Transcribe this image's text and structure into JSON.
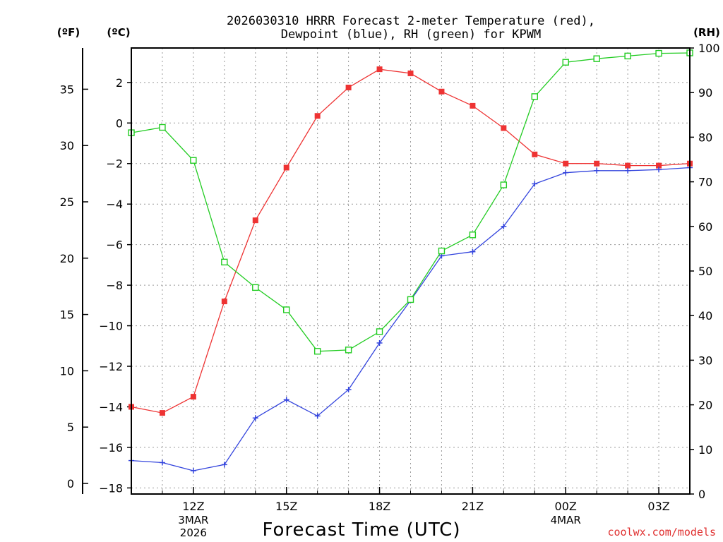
{
  "chart_data": {
    "type": "line",
    "title": "2026030310 HRRR Forecast 2-meter Temperature (red),",
    "title_line2": "Dewpoint (blue), RH (green) for KPWM",
    "xlabel": "Forecast Time (UTC)",
    "credit": "coolwx.com/models",
    "units": {
      "f": "(ºF)",
      "c": "(ºC)",
      "rh": "(RH)"
    },
    "x": [
      10,
      11,
      12,
      13,
      14,
      15,
      16,
      17,
      18,
      19,
      20,
      21,
      22,
      23,
      24,
      25,
      26,
      27,
      28
    ],
    "xlim": [
      10,
      28
    ],
    "x_ticks": [
      {
        "x": 12,
        "label": "12Z",
        "sub1": "3MAR",
        "sub2": "2026"
      },
      {
        "x": 15,
        "label": "15Z",
        "sub1": "",
        "sub2": ""
      },
      {
        "x": 18,
        "label": "18Z",
        "sub1": "",
        "sub2": ""
      },
      {
        "x": 21,
        "label": "21Z",
        "sub1": "",
        "sub2": ""
      },
      {
        "x": 24,
        "label": "00Z",
        "sub1": "4MAR",
        "sub2": ""
      },
      {
        "x": 27,
        "label": "03Z",
        "sub1": "",
        "sub2": ""
      }
    ],
    "y_c_range": [
      -18.3,
      3.7
    ],
    "y_c_ticks": [
      2,
      0,
      -2,
      -4,
      -6,
      -8,
      -10,
      -12,
      -14,
      -16,
      -18
    ],
    "y_f_ticks": [
      35,
      30,
      25,
      20,
      15,
      10,
      5,
      0
    ],
    "y_rh_range": [
      0,
      100
    ],
    "y_rh_ticks": [
      100,
      90,
      80,
      70,
      60,
      50,
      40,
      30,
      20,
      10,
      0
    ],
    "series": [
      {
        "name": "Temperature",
        "axis": "c",
        "color": "#ee3333",
        "marker": "filled-square",
        "values": [
          -14.0,
          -14.3,
          -13.5,
          -8.8,
          -4.8,
          -2.2,
          0.35,
          1.75,
          2.65,
          2.45,
          1.55,
          0.85,
          -0.25,
          -1.55,
          -2.0,
          -2.0,
          -2.1,
          -2.1,
          -2.0
        ]
      },
      {
        "name": "Dewpoint",
        "axis": "c",
        "color": "#3344dd",
        "marker": "plus",
        "values": [
          -16.65,
          -16.75,
          -17.15,
          -16.85,
          -14.55,
          -13.65,
          -14.45,
          -13.15,
          -10.85,
          -8.75,
          -6.55,
          -6.35,
          -5.1,
          -3.0,
          -2.45,
          -2.35,
          -2.35,
          -2.3,
          -2.2
        ]
      },
      {
        "name": "Relative Humidity",
        "axis": "rh",
        "color": "#22cc22",
        "marker": "open-square",
        "values": [
          81,
          82.2,
          74.8,
          52,
          46.3,
          41.3,
          32,
          32.3,
          36.4,
          43.6,
          54.5,
          58.1,
          69.3,
          89.1,
          96.8,
          97.6,
          98.2,
          98.8,
          98.9
        ]
      }
    ]
  }
}
